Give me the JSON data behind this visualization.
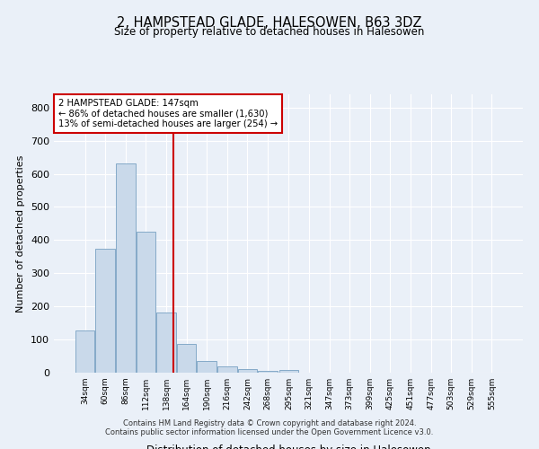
{
  "title": "2, HAMPSTEAD GLADE, HALESOWEN, B63 3DZ",
  "subtitle": "Size of property relative to detached houses in Halesowen",
  "xlabel": "Distribution of detached houses by size in Halesowen",
  "ylabel": "Number of detached properties",
  "footnote1": "Contains HM Land Registry data © Crown copyright and database right 2024.",
  "footnote2": "Contains public sector information licensed under the Open Government Licence v3.0.",
  "bar_labels": [
    "34sqm",
    "60sqm",
    "86sqm",
    "112sqm",
    "138sqm",
    "164sqm",
    "190sqm",
    "216sqm",
    "242sqm",
    "268sqm",
    "295sqm",
    "321sqm",
    "347sqm",
    "373sqm",
    "399sqm",
    "425sqm",
    "451sqm",
    "477sqm",
    "503sqm",
    "529sqm",
    "555sqm"
  ],
  "bar_values": [
    128,
    375,
    632,
    425,
    182,
    88,
    35,
    18,
    10,
    6,
    8,
    0,
    0,
    0,
    0,
    0,
    0,
    0,
    0,
    0,
    0
  ],
  "bar_color": "#c9d9ea",
  "bar_edge_color": "#85aac8",
  "ylim": [
    0,
    840
  ],
  "yticks": [
    0,
    100,
    200,
    300,
    400,
    500,
    600,
    700,
    800
  ],
  "vline_x": 147,
  "vline_color": "#cc0000",
  "property_label": "2 HAMPSTEAD GLADE: 147sqm",
  "annotation_line1": "← 86% of detached houses are smaller (1,630)",
  "annotation_line2": "13% of semi-detached houses are larger (254) →",
  "background_color": "#eaf0f8",
  "plot_bg_color": "#eaf0f8",
  "grid_color": "#ffffff",
  "title_fontsize": 10.5,
  "subtitle_fontsize": 8.5
}
